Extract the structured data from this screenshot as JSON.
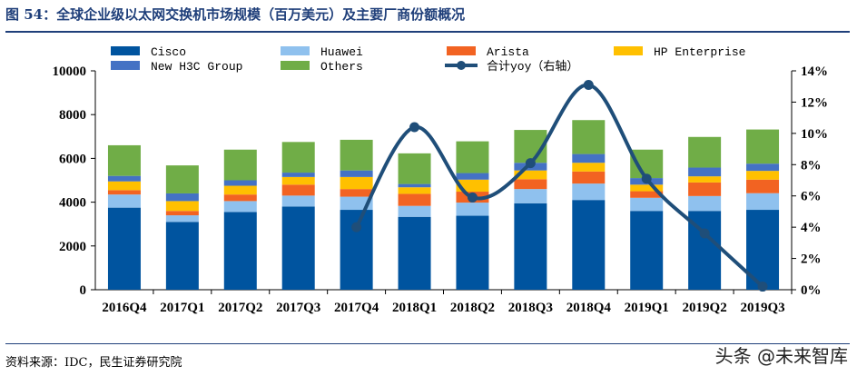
{
  "title": "图 54：全球企业级以太网交换机市场规模（百万美元）及主要厂商份额概况",
  "source": "资料来源：IDC，民生证券研究院",
  "watermark": "头条 @未来智库",
  "chart_data": {
    "type": "bar",
    "stacked": true,
    "categories": [
      "2016Q4",
      "2017Q1",
      "2017Q2",
      "2017Q3",
      "2017Q4",
      "2018Q1",
      "2018Q2",
      "2018Q3",
      "2018Q4",
      "2019Q1",
      "2019Q2",
      "2019Q3"
    ],
    "series": [
      {
        "name": "Cisco",
        "color": "#00549f",
        "values": [
          3750,
          3100,
          3550,
          3800,
          3650,
          3330,
          3380,
          3950,
          4100,
          3600,
          3600,
          3650
        ]
      },
      {
        "name": "Huawei",
        "color": "#8fc1ee",
        "values": [
          600,
          300,
          500,
          500,
          600,
          500,
          600,
          650,
          750,
          600,
          680,
          760
        ]
      },
      {
        "name": "Arista",
        "color": "#f26322",
        "values": [
          200,
          200,
          300,
          500,
          350,
          550,
          500,
          450,
          550,
          300,
          620,
          620
        ]
      },
      {
        "name": "HP Enterprise",
        "color": "#ffc000",
        "values": [
          400,
          450,
          400,
          350,
          550,
          300,
          550,
          400,
          400,
          300,
          280,
          400
        ]
      },
      {
        "name": "New H3C Group",
        "color": "#4472c4",
        "values": [
          250,
          350,
          250,
          200,
          300,
          150,
          300,
          350,
          400,
          300,
          400,
          330
        ]
      },
      {
        "name": "Others",
        "color": "#70ad47",
        "values": [
          1400,
          1280,
          1400,
          1400,
          1400,
          1400,
          1450,
          1500,
          1550,
          1300,
          1400,
          1560
        ]
      }
    ],
    "line": {
      "name": "合计yoy（右轴）",
      "color": "#1f4e79",
      "values": [
        null,
        null,
        null,
        null,
        4.0,
        10.4,
        5.9,
        8.1,
        13.1,
        7.1,
        3.6,
        0.2
      ]
    },
    "y_left": {
      "min": 0,
      "max": 10000,
      "ticks": [
        0,
        2000,
        4000,
        6000,
        8000,
        10000
      ]
    },
    "y_right": {
      "min": 0,
      "max": 14,
      "ticks": [
        "0%",
        "2%",
        "4%",
        "6%",
        "8%",
        "10%",
        "12%",
        "14%"
      ]
    },
    "legend": [
      {
        "label": "Cisco",
        "kind": "bar",
        "color": "#00549f"
      },
      {
        "label": "Huawei",
        "kind": "bar",
        "color": "#8fc1ee"
      },
      {
        "label": "Arista",
        "kind": "bar",
        "color": "#f26322"
      },
      {
        "label": "HP Enterprise",
        "kind": "bar",
        "color": "#ffc000"
      },
      {
        "label": "New H3C Group",
        "kind": "bar",
        "color": "#4472c4"
      },
      {
        "label": "Others",
        "kind": "bar",
        "color": "#70ad47"
      },
      {
        "label": "合计yoy（右轴）",
        "kind": "line",
        "color": "#1f4e79"
      }
    ],
    "legend_position": "top",
    "grid": false
  }
}
